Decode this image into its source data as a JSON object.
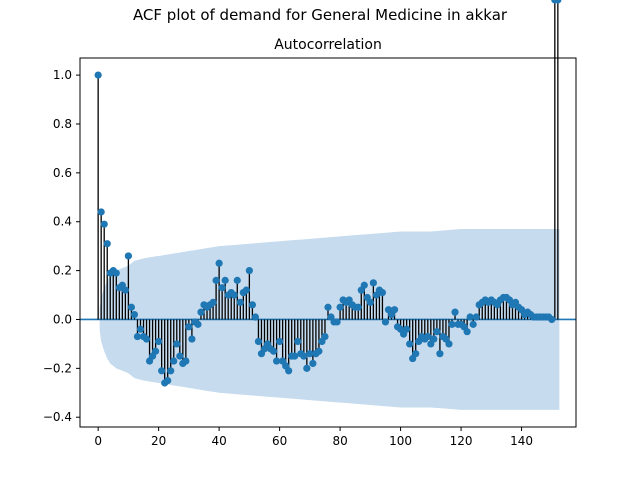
{
  "figure": {
    "suptitle": "ACF plot of demand for General Medicine in akkar"
  },
  "chart_data": {
    "type": "stem",
    "title": "Autocorrelation",
    "xlabel": "",
    "ylabel": "",
    "xlim": [
      -6,
      158
    ],
    "ylim": [
      -0.44,
      1.07
    ],
    "x_ticks": [
      0,
      20,
      40,
      60,
      80,
      100,
      120,
      140
    ],
    "y_ticks": [
      -0.4,
      -0.2,
      0.0,
      0.2,
      0.4,
      0.6,
      0.8,
      1.0
    ],
    "colors": {
      "marker": "#1f77b4",
      "stem": "#000000",
      "band": "#c6dbee",
      "zero_line": "#1f77b4"
    },
    "series": [
      {
        "lags": [
          0,
          1,
          2,
          3,
          4,
          5,
          6,
          7,
          8,
          9,
          10,
          11,
          12,
          13,
          14,
          15,
          16,
          17,
          18,
          19,
          20,
          21,
          22,
          23,
          24,
          25,
          26,
          27,
          28,
          29,
          30,
          31,
          32,
          33,
          34,
          35,
          36,
          37,
          38,
          39,
          40,
          41,
          42,
          43,
          44,
          45,
          46,
          47,
          48,
          49,
          50,
          51,
          52,
          53,
          54,
          55,
          56,
          57,
          58,
          59,
          60,
          61,
          62,
          63,
          64,
          65,
          66,
          67,
          68,
          69,
          70,
          71,
          72,
          73,
          74,
          75,
          76,
          77,
          78,
          79,
          80,
          81,
          82,
          83,
          84,
          85,
          86,
          87,
          88,
          89,
          90,
          91,
          92,
          93,
          94,
          95,
          96,
          97,
          98,
          99,
          100,
          101,
          102,
          103,
          104,
          105,
          106,
          107,
          108,
          109,
          110,
          111,
          112,
          113,
          114,
          115,
          116,
          117,
          118,
          119,
          120,
          121,
          122,
          123,
          124,
          125,
          126,
          127,
          128,
          129,
          130,
          131,
          132,
          133,
          134,
          135,
          136,
          137,
          138,
          139,
          140,
          141,
          142,
          143,
          144,
          145,
          146,
          147,
          148,
          149,
          150,
          151,
          152
        ],
        "values": [
          1.0,
          0.44,
          0.39,
          0.31,
          0.19,
          0.2,
          0.19,
          0.13,
          0.14,
          0.12,
          0.26,
          0.05,
          0.02,
          -0.07,
          -0.04,
          -0.07,
          -0.08,
          -0.17,
          -0.15,
          -0.13,
          -0.09,
          -0.21,
          -0.26,
          -0.25,
          -0.21,
          -0.17,
          -0.1,
          -0.15,
          -0.18,
          -0.17,
          -0.03,
          -0.08,
          -0.01,
          -0.02,
          0.03,
          0.06,
          0.05,
          0.06,
          0.07,
          0.16,
          0.23,
          0.13,
          0.16,
          0.1,
          0.11,
          0.1,
          0.16,
          0.07,
          0.11,
          0.12,
          0.2,
          0.06,
          0.01,
          -0.09,
          -0.14,
          -0.12,
          -0.1,
          -0.12,
          -0.13,
          -0.17,
          -0.09,
          -0.17,
          -0.19,
          -0.21,
          -0.15,
          -0.15,
          -0.09,
          -0.14,
          -0.15,
          -0.2,
          -0.14,
          -0.18,
          -0.14,
          -0.13,
          -0.09,
          -0.07,
          0.05,
          0.01,
          -0.01,
          -0.01,
          0.05,
          0.08,
          0.07,
          0.08,
          0.06,
          0.05,
          0.05,
          0.12,
          0.14,
          0.09,
          0.07,
          0.15,
          0.1,
          0.12,
          0.11,
          -0.01,
          0.04,
          0.02,
          0.04,
          -0.03,
          -0.04,
          -0.06,
          -0.04,
          -0.1,
          -0.16,
          -0.14,
          -0.09,
          -0.07,
          -0.08,
          -0.07,
          -0.1,
          -0.08,
          -0.05,
          -0.14,
          -0.07,
          -0.08,
          -0.1,
          -0.02,
          0.03,
          -0.02,
          -0.02,
          -0.03,
          -0.05,
          0.01,
          -0.02,
          0.01,
          0.06,
          0.07,
          0.08,
          0.07,
          0.08,
          0.07,
          0.06,
          0.08,
          0.09,
          0.09,
          0.08,
          0.06,
          0.07,
          0.05,
          0.04,
          0.02,
          0.03,
          0.02,
          0.01,
          0.01,
          0.01,
          0.01,
          0.01,
          0.01,
          0.0
        ]
      }
    ],
    "confidence_band": {
      "lags": [
        0,
        1,
        2,
        3,
        4,
        5,
        6,
        8,
        10,
        12,
        15,
        20,
        30,
        40,
        50,
        60,
        70,
        80,
        90,
        100,
        110,
        120,
        130,
        140,
        145,
        152
      ],
      "upper": [
        0.0,
        0.09,
        0.13,
        0.16,
        0.18,
        0.19,
        0.2,
        0.21,
        0.22,
        0.24,
        0.25,
        0.26,
        0.28,
        0.3,
        0.31,
        0.32,
        0.33,
        0.34,
        0.35,
        0.36,
        0.36,
        0.37,
        0.37,
        0.37,
        0.37,
        0.37
      ]
    }
  }
}
